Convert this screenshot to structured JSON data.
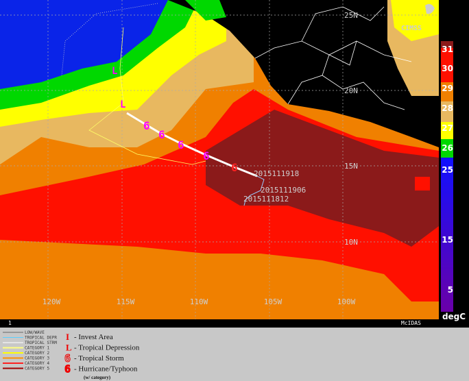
{
  "map": {
    "lat_labels": [
      "25N",
      "20N",
      "15N",
      "10N"
    ],
    "lon_labels": [
      "120W",
      "115W",
      "110W",
      "105W",
      "100W"
    ],
    "track_labels": [
      "2015111918",
      "2015111906",
      "2015111812"
    ],
    "frame_label": "1",
    "source": "McIDAS",
    "logo": "CIMSS"
  },
  "colorbar": {
    "ticks": [
      31,
      30,
      29,
      28,
      27,
      26,
      25,
      15,
      5
    ],
    "unit": "degC"
  },
  "legend": {
    "track_types": [
      "LOW/WAVE",
      "TROPICAL DEPR",
      "TROPICAL STRM",
      "CATEGORY 1",
      "CATEGORY 2",
      "CATEGORY 3",
      "CATEGORY 4",
      "CATEGORY 5"
    ],
    "symbols": [
      {
        "mark": "I",
        "label": "- Invest Area"
      },
      {
        "mark": "L",
        "label": "- Tropical Depression"
      },
      {
        "label": "- Tropical Storm"
      },
      {
        "label": "- Hurricane/Typhoon"
      }
    ],
    "note": "(w/ category)"
  }
}
